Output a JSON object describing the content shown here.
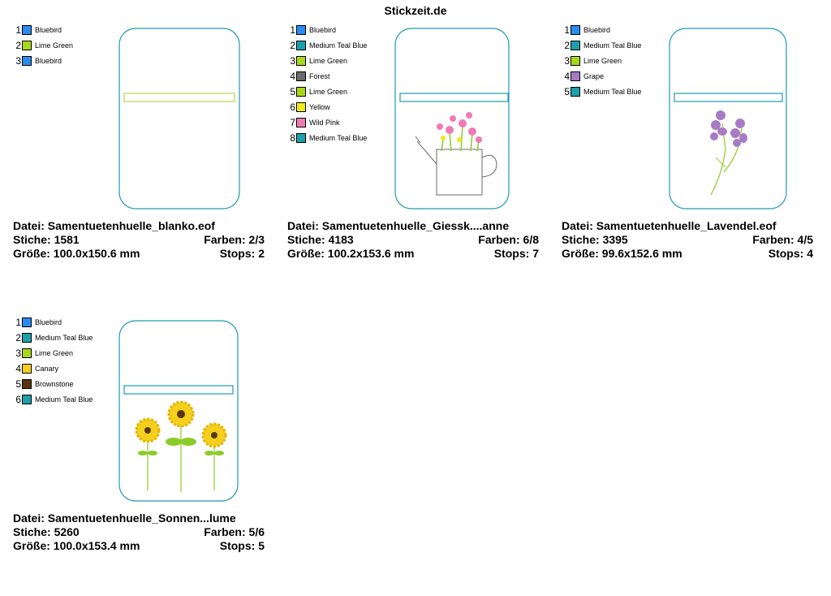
{
  "site_title": "Stickzeit.de",
  "labels": {
    "datei": "Datei:",
    "stiche": "Stiche:",
    "farben": "Farben:",
    "groesse": "Größe:",
    "stops": "Stops:"
  },
  "colors": {
    "outline": "#1f9bb0",
    "band_lime": "#b8d64a",
    "band_teal": "#1f9bb0"
  },
  "cards": [
    {
      "file": "Samentuetenhuelle_blanko.eof",
      "stitches": "1581",
      "colors": "2/3",
      "size": "100.0x150.6 mm",
      "stops": "2",
      "motif": "blank",
      "legend": [
        {
          "num": "1",
          "name": "Bluebird",
          "color": "#2a8cf0"
        },
        {
          "num": "2",
          "name": "Lime Green",
          "color": "#a8d81c"
        },
        {
          "num": "3",
          "name": "Bluebird",
          "color": "#2a8cf0"
        }
      ]
    },
    {
      "file": "Samentuetenhuelle_Giessk....anne",
      "stitches": "4183",
      "colors": "6/8",
      "size": "100.2x153.6 mm",
      "stops": "7",
      "motif": "watering-can",
      "legend": [
        {
          "num": "1",
          "name": "Bluebird",
          "color": "#2a8cf0"
        },
        {
          "num": "2",
          "name": "Medium Teal Blue",
          "color": "#1da0aa"
        },
        {
          "num": "3",
          "name": "Lime Green",
          "color": "#a8d81c"
        },
        {
          "num": "4",
          "name": "Forest",
          "color": "#6b6b6b"
        },
        {
          "num": "5",
          "name": "Lime Green",
          "color": "#a8d81c"
        },
        {
          "num": "6",
          "name": "Yellow",
          "color": "#f2ea1a"
        },
        {
          "num": "7",
          "name": "Wild Pink",
          "color": "#f07ab4"
        },
        {
          "num": "8",
          "name": "Medium Teal Blue",
          "color": "#1da0aa"
        }
      ]
    },
    {
      "file": "Samentuetenhuelle_Lavendel.eof",
      "stitches": "3395",
      "colors": "4/5",
      "size": "99.6x152.6 mm",
      "stops": "4",
      "motif": "lavender",
      "legend": [
        {
          "num": "1",
          "name": "Bluebird",
          "color": "#2a8cf0"
        },
        {
          "num": "2",
          "name": "Medium Teal Blue",
          "color": "#1da0aa"
        },
        {
          "num": "3",
          "name": "Lime Green",
          "color": "#a8d81c"
        },
        {
          "num": "4",
          "name": "Grape",
          "color": "#a77bc4"
        },
        {
          "num": "5",
          "name": "Medium Teal Blue",
          "color": "#1da0aa"
        }
      ]
    },
    {
      "file": "Samentuetenhuelle_Sonnen...lume",
      "stitches": "5260",
      "colors": "5/6",
      "size": "100.0x153.4 mm",
      "stops": "5",
      "motif": "sunflowers",
      "legend": [
        {
          "num": "1",
          "name": "Bluebird",
          "color": "#2a8cf0"
        },
        {
          "num": "2",
          "name": "Medium Teal Blue",
          "color": "#1da0aa"
        },
        {
          "num": "3",
          "name": "Lime Green",
          "color": "#a8d81c"
        },
        {
          "num": "4",
          "name": "Canary",
          "color": "#f5cf1e"
        },
        {
          "num": "5",
          "name": "Brownstone",
          "color": "#5a3510"
        },
        {
          "num": "6",
          "name": "Medium Teal Blue",
          "color": "#1da0aa"
        }
      ]
    }
  ]
}
